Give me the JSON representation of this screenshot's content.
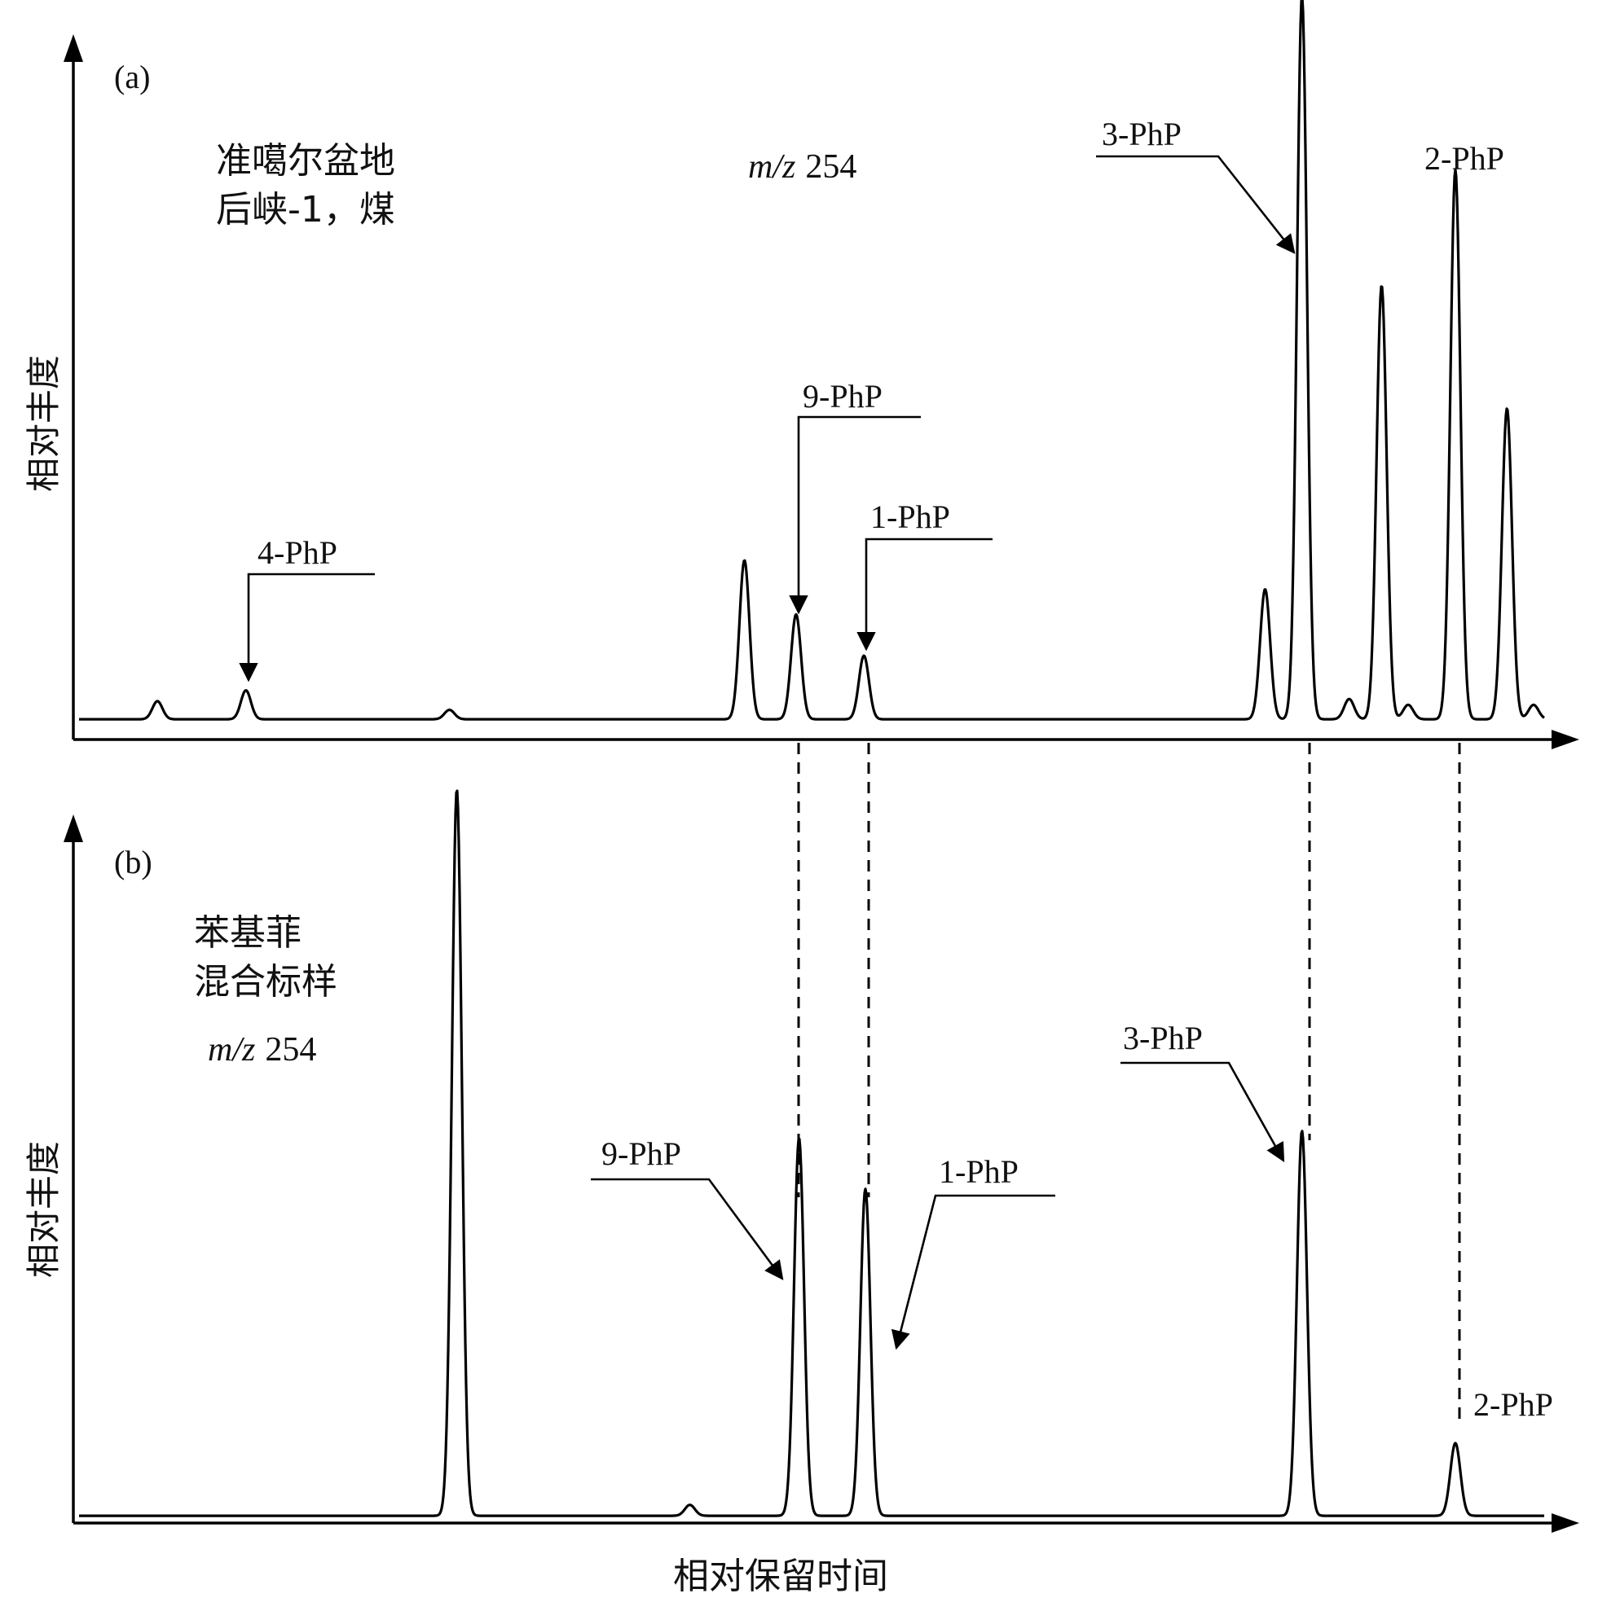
{
  "figure": {
    "xlabel": "相对保留时间",
    "ylabel": "相对丰度"
  },
  "chart_data": [
    {
      "type": "line",
      "panel_label": "(a)",
      "sample_lines": [
        "准噶尔盆地",
        "后峡-1，煤"
      ],
      "mz_prefix": "m/z",
      "mz_value": "254",
      "ylabel": "相对丰度",
      "xlim": [
        0,
        1
      ],
      "ylim": [
        0,
        1
      ],
      "grid": false,
      "baseline": 0.028,
      "peaks": [
        {
          "x": 0.057,
          "height": 0.025
        },
        {
          "x": 0.117,
          "height": 0.04,
          "label": "4-PhP"
        },
        {
          "x": 0.255,
          "height": 0.013
        },
        {
          "x": 0.455,
          "height": 0.22
        },
        {
          "x": 0.49,
          "height": 0.145,
          "label": "9-PhP"
        },
        {
          "x": 0.536,
          "height": 0.088,
          "label": "1-PhP"
        },
        {
          "x": 0.808,
          "height": 0.18
        },
        {
          "x": 0.833,
          "height": 1.0,
          "label": "3-PhP"
        },
        {
          "x": 0.865,
          "height": 0.028
        },
        {
          "x": 0.887,
          "height": 0.6
        },
        {
          "x": 0.905,
          "height": 0.02
        },
        {
          "x": 0.937,
          "height": 0.76,
          "label": "2-PhP"
        },
        {
          "x": 0.972,
          "height": 0.43
        },
        {
          "x": 0.99,
          "height": 0.02
        }
      ]
    },
    {
      "type": "line",
      "panel_label": "(b)",
      "sample_lines": [
        "苯基菲",
        "混合标样"
      ],
      "mz_prefix": "m/z",
      "mz_value": "254",
      "ylabel": "相对丰度",
      "xlim": [
        0,
        1
      ],
      "ylim": [
        0,
        1
      ],
      "grid": false,
      "baseline": 0.01,
      "peaks": [
        {
          "x": 0.26,
          "height": 1.0
        },
        {
          "x": 0.418,
          "height": 0.015
        },
        {
          "x": 0.492,
          "height": 0.52,
          "label": "9-PhP"
        },
        {
          "x": 0.537,
          "height": 0.45,
          "label": "1-PhP"
        },
        {
          "x": 0.833,
          "height": 0.53,
          "label": "3-PhP"
        },
        {
          "x": 0.937,
          "height": 0.1,
          "label": "2-PhP"
        }
      ]
    }
  ],
  "alignment_labels": [
    "9-PhP",
    "1-PhP",
    "3-PhP",
    "2-PhP"
  ]
}
